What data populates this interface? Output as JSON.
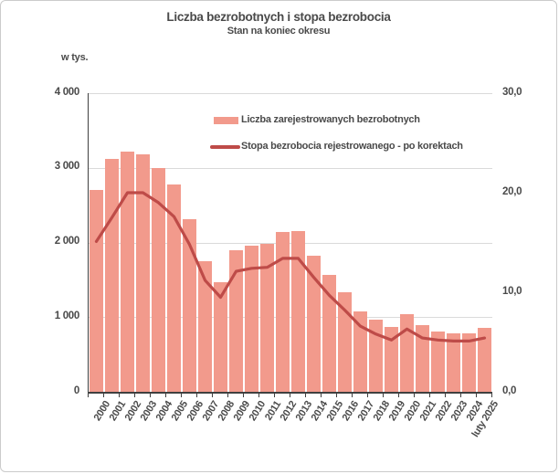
{
  "header": {
    "title": "Liczba bezrobotnych i stopa bezrobocia",
    "subtitle": "Stan na koniec okresu"
  },
  "colors": {
    "bar": "#F29A8C",
    "line": "#BE4B48",
    "grid": "#DADADA",
    "axis": "#404040",
    "text": "#4A4A4A"
  },
  "axes": {
    "left": {
      "unit_label": "w tys.",
      "max": 4000,
      "ticks": [
        {
          "value": 4000,
          "label": "4 000"
        },
        {
          "value": 3000,
          "label": "3 000"
        },
        {
          "value": 2000,
          "label": "2 000"
        },
        {
          "value": 1000,
          "label": "1 000"
        },
        {
          "value": 0,
          "label": "0"
        }
      ]
    },
    "right": {
      "max": 30,
      "ticks": [
        {
          "value": 30,
          "label": "30,0"
        },
        {
          "value": 20,
          "label": "20,0"
        },
        {
          "value": 10,
          "label": "10,0"
        },
        {
          "value": 0,
          "label": "0,0"
        }
      ]
    }
  },
  "legend": [
    {
      "type": "bar",
      "label": "Liczba zarejestrowanych bezrobotnych"
    },
    {
      "type": "line",
      "label": "Stopa bezrobocia rejestrowanego - po korektach"
    }
  ],
  "chart_data": {
    "type": "bar+line combo",
    "title": "Liczba bezrobotnych i stopa bezrobocia",
    "subtitle": "Stan na koniec okresu",
    "ylabel_left": "w tys.",
    "ylim_left": [
      0,
      4000
    ],
    "ylim_right": [
      0,
      30
    ],
    "grid": "horizontal",
    "legend_position": "inside-top",
    "categories": [
      "2000",
      "2001",
      "2002",
      "2003",
      "2004",
      "2005",
      "2006",
      "2007",
      "2008",
      "2009",
      "2010",
      "2011",
      "2012",
      "2013",
      "2014",
      "2015",
      "2016",
      "2017",
      "2018",
      "2019",
      "2020",
      "2021",
      "2022",
      "2023",
      "2024",
      "luty 2025"
    ],
    "series": [
      {
        "name": "Liczba zarejestrowanych bezrobotnych",
        "type": "bar",
        "axis": "left",
        "unit": "tys.",
        "values": [
          2703,
          3115,
          3217,
          3176,
          3000,
          2773,
          2309,
          1747,
          1474,
          1893,
          1955,
          1983,
          2137,
          2158,
          1825,
          1563,
          1335,
          1082,
          969,
          866,
          1046,
          895,
          812,
          788,
          787,
          854
        ]
      },
      {
        "name": "Stopa bezrobocia rejestrowanego - po korektach",
        "type": "line",
        "axis": "right",
        "unit": "%",
        "values": [
          15.1,
          17.5,
          20.0,
          20.0,
          19.0,
          17.6,
          14.8,
          11.2,
          9.5,
          12.1,
          12.4,
          12.5,
          13.4,
          13.4,
          11.5,
          9.7,
          8.2,
          6.6,
          5.8,
          5.2,
          6.3,
          5.4,
          5.2,
          5.1,
          5.1,
          5.4
        ]
      }
    ]
  }
}
